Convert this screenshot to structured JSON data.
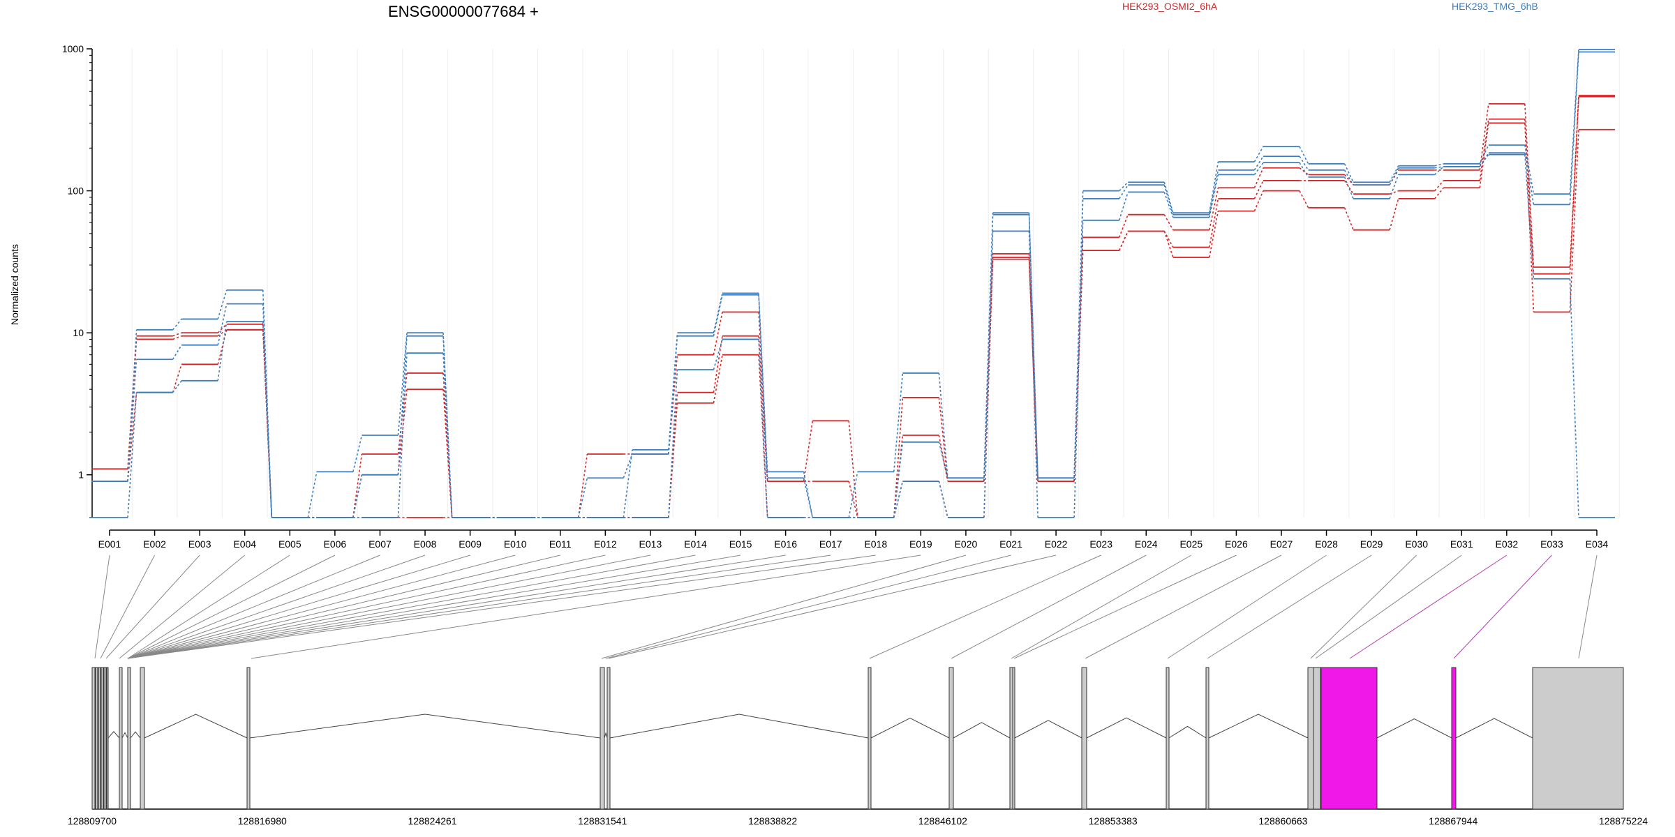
{
  "chart_data": {
    "type": "line",
    "title": "ENSG00000077684 +",
    "ylabel": "Normalized counts",
    "xlabel": "",
    "yscale": "log",
    "ylim": [
      0.5,
      1000
    ],
    "yticks": [
      1,
      10,
      100,
      1000
    ],
    "ytick_labels": [
      "1",
      "10",
      "100",
      "1000"
    ],
    "categories": [
      "E001",
      "E002",
      "E003",
      "E004",
      "E005",
      "E006",
      "E007",
      "E008",
      "E009",
      "E010",
      "E011",
      "E012",
      "E013",
      "E014",
      "E015",
      "E016",
      "E017",
      "E018",
      "E019",
      "E020",
      "E021",
      "E022",
      "E023",
      "E024",
      "E025",
      "E026",
      "E027",
      "E028",
      "E029",
      "E030",
      "E031",
      "E032",
      "E033",
      "E034"
    ],
    "legend": [
      {
        "label": "HEK293_OSMI2_6hA",
        "color": "#d62728"
      },
      {
        "label": "HEK293_TMG_6hB",
        "color": "#3c7fc0"
      }
    ],
    "series": [
      {
        "group": "HEK293_OSMI2_6hA",
        "color": "#d62728",
        "values": [
          1.1,
          9.5,
          10,
          11.5,
          0.5,
          0.5,
          1.4,
          5.2,
          0.5,
          0.5,
          0.5,
          1.4,
          1.4,
          7,
          14,
          0.9,
          2.4,
          0.5,
          3.5,
          0.9,
          36,
          0.9,
          47,
          68,
          53,
          105,
          145,
          130,
          110,
          140,
          140,
          410,
          29,
          470
        ]
      },
      {
        "group": "HEK293_OSMI2_6hA",
        "color": "#d62728",
        "values": [
          0.9,
          9,
          9.5,
          10.5,
          0.5,
          0.5,
          1,
          4,
          0.5,
          0.5,
          0.5,
          0.5,
          0.5,
          3.8,
          9.5,
          0.9,
          0.9,
          0.5,
          1.9,
          0.9,
          34,
          0.9,
          38,
          52,
          40,
          88,
          118,
          118,
          95,
          100,
          118,
          320,
          26,
          460
        ]
      },
      {
        "group": "HEK293_OSMI2_6hA",
        "color": "#d62728",
        "values": [
          0.9,
          3.8,
          6,
          10.5,
          0.5,
          0.5,
          0.5,
          0.5,
          0.5,
          0.5,
          0.5,
          0.5,
          0.5,
          3.2,
          7,
          0.5,
          0.5,
          0.5,
          0.9,
          0.5,
          33,
          0.9,
          38,
          52,
          34,
          72,
          100,
          76,
          53,
          88,
          105,
          300,
          14,
          270
        ]
      },
      {
        "group": "HEK293_TMG_6hB",
        "color": "#3c7fc0",
        "values": [
          0.9,
          10.5,
          12.5,
          20,
          0.5,
          1.05,
          1.9,
          10,
          0.5,
          0.5,
          0.5,
          0.5,
          1.5,
          10,
          19,
          1.05,
          0.5,
          1.05,
          5.2,
          0.95,
          70,
          0.95,
          100,
          115,
          70,
          160,
          205,
          155,
          115,
          150,
          155,
          210,
          95,
          990
        ]
      },
      {
        "group": "HEK293_TMG_6hB",
        "color": "#3c7fc0",
        "values": [
          0.9,
          6.5,
          8.2,
          16,
          0.5,
          0.5,
          1,
          9.5,
          0.5,
          0.5,
          0.5,
          0.95,
          1.4,
          9.5,
          18.5,
          0.95,
          0.5,
          0.5,
          1.7,
          0.95,
          68,
          0.95,
          88,
          110,
          68,
          140,
          175,
          140,
          110,
          145,
          148,
          185,
          80,
          950
        ]
      },
      {
        "group": "HEK293_TMG_6hB",
        "color": "#3c7fc0",
        "values": [
          0.5,
          3.8,
          4.6,
          12,
          0.5,
          0.5,
          0.5,
          7.2,
          0.5,
          0.5,
          0.5,
          0.5,
          0.5,
          5.5,
          9,
          0.5,
          0.5,
          0.5,
          0.9,
          0.5,
          52,
          0.5,
          62,
          98,
          65,
          130,
          158,
          125,
          88,
          130,
          148,
          180,
          24,
          0.5
        ]
      }
    ],
    "genomic_axis": {
      "ticks": [
        "128809700",
        "128816980",
        "128824261",
        "128831541",
        "128838822",
        "128846102",
        "128853383",
        "128860663",
        "128867944",
        "128875224"
      ]
    }
  }
}
